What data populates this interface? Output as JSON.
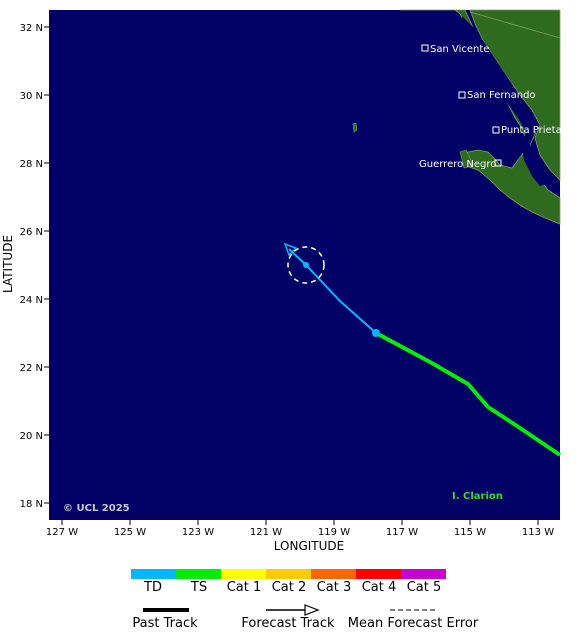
{
  "map": {
    "axis_x_label": "LONGITUDE",
    "axis_y_label": "LATITUDE",
    "lon_ticks": [
      "127 W",
      "125 W",
      "123 W",
      "121 W",
      "119 W",
      "117 W",
      "115 W",
      "113 W"
    ],
    "lat_ticks": [
      "32 N",
      "30 N",
      "28 N",
      "26 N",
      "24 N",
      "22 N",
      "20 N",
      "18 N"
    ],
    "copyright": "© UCL 2025",
    "storm_name": "I. Clarion",
    "ocean_color": "#000066",
    "land_color": "#2e6b1f",
    "cities": [
      {
        "name": "San Vicente"
      },
      {
        "name": "San Fernando"
      },
      {
        "name": "Punta Prieta"
      },
      {
        "name": "Guerrero Negro"
      }
    ]
  },
  "legend": {
    "categories": [
      {
        "label": "TD",
        "color": "#00b8ff"
      },
      {
        "label": "TS",
        "color": "#00ee00"
      },
      {
        "label": "Cat 1",
        "color": "#ffff00"
      },
      {
        "label": "Cat 2",
        "color": "#ffcc00"
      },
      {
        "label": "Cat 3",
        "color": "#ff6600"
      },
      {
        "label": "Cat 4",
        "color": "#ff0000"
      },
      {
        "label": "Cat 5",
        "color": "#cc00cc"
      }
    ],
    "past_track_label": "Past Track",
    "forecast_track_label": "Forecast Track",
    "mean_error_label": "Mean Forecast Error"
  }
}
